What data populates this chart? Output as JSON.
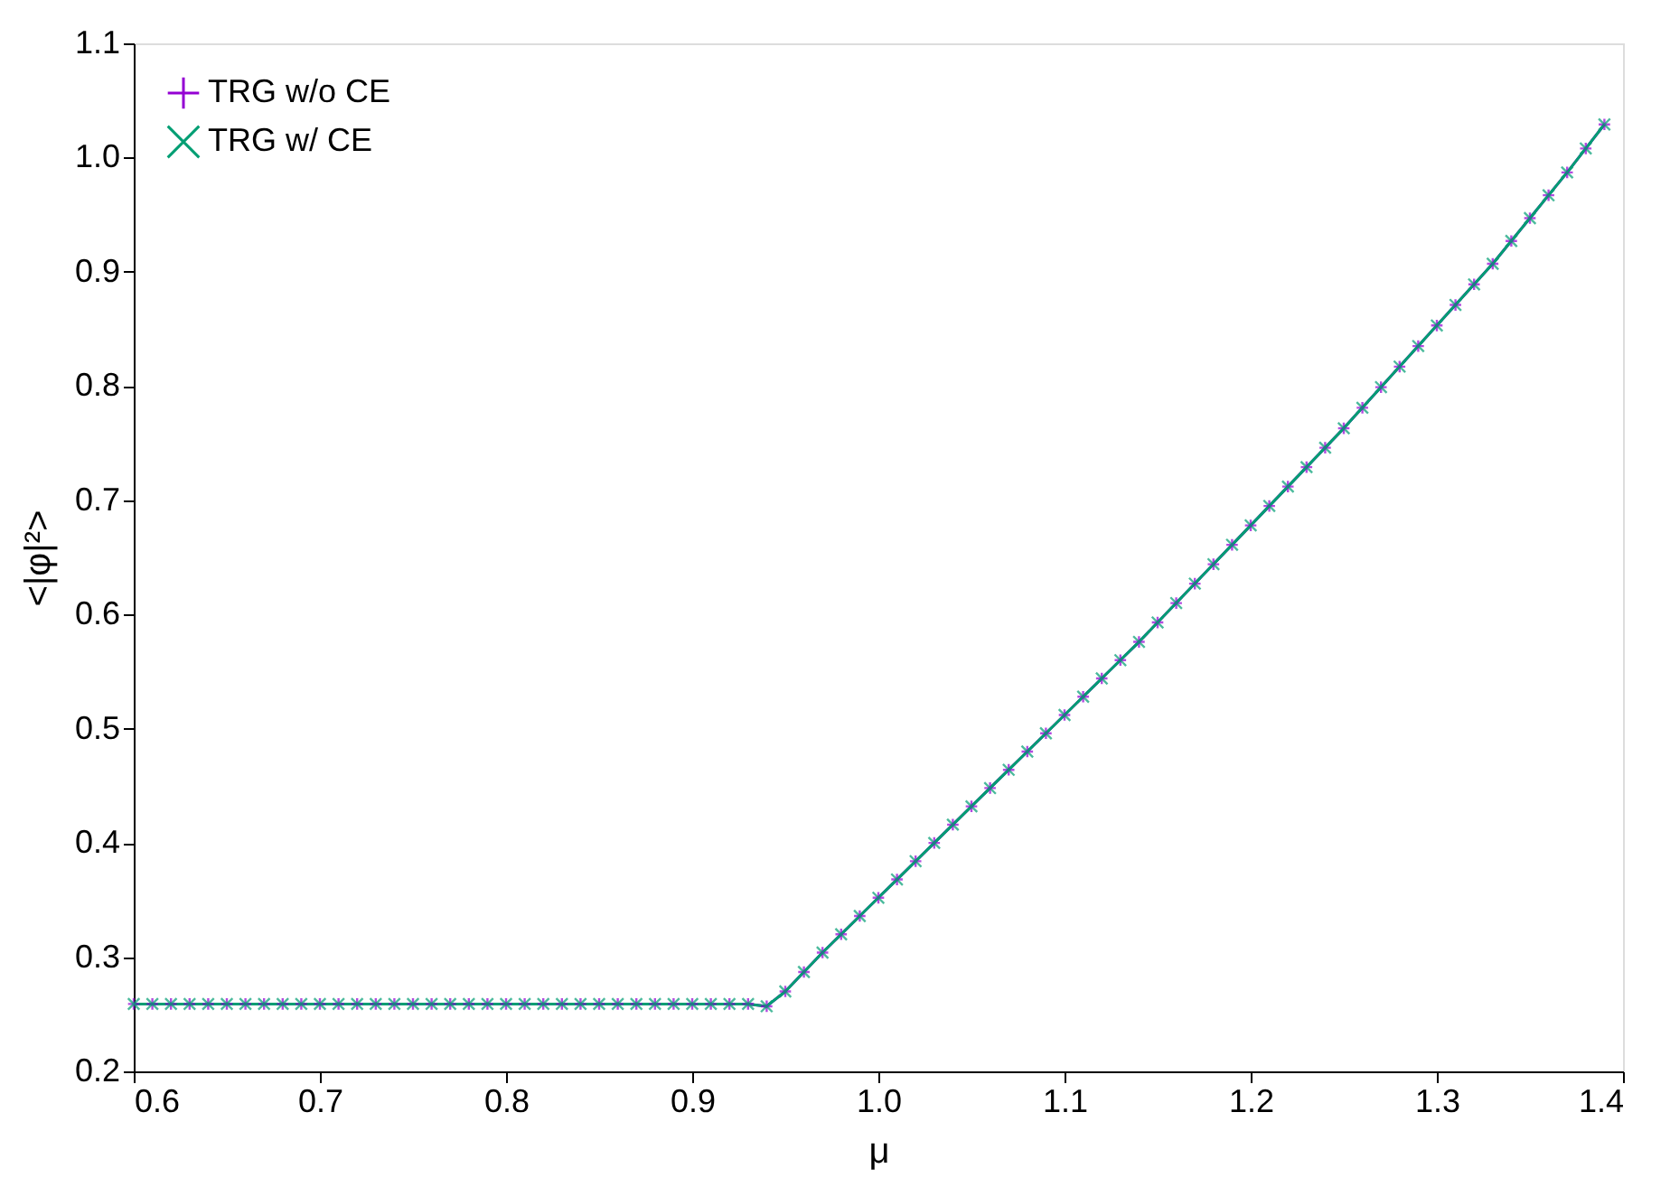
{
  "chart_data": {
    "type": "line",
    "xlabel": "μ",
    "ylabel": "<|φ|²>",
    "x": [
      0.6,
      0.61,
      0.62,
      0.63,
      0.64,
      0.65,
      0.66,
      0.67,
      0.68,
      0.69,
      0.7,
      0.71,
      0.72,
      0.73,
      0.74,
      0.75,
      0.76,
      0.77,
      0.78,
      0.79,
      0.8,
      0.81,
      0.82,
      0.83,
      0.84,
      0.85,
      0.86,
      0.87,
      0.88,
      0.89,
      0.9,
      0.91,
      0.92,
      0.93,
      0.94,
      0.95,
      0.96,
      0.97,
      0.98,
      0.99,
      1.0,
      1.01,
      1.02,
      1.03,
      1.04,
      1.05,
      1.06,
      1.07,
      1.08,
      1.09,
      1.1,
      1.11,
      1.12,
      1.13,
      1.14,
      1.15,
      1.16,
      1.17,
      1.18,
      1.19,
      1.2,
      1.21,
      1.22,
      1.23,
      1.24,
      1.25,
      1.26,
      1.27,
      1.28,
      1.29,
      1.3,
      1.31,
      1.32,
      1.33,
      1.34,
      1.35,
      1.36,
      1.37,
      1.38,
      1.39
    ],
    "series": [
      {
        "name": "TRG w/o CE",
        "color": "#9400d3",
        "marker": "cross",
        "values": [
          0.259,
          0.259,
          0.259,
          0.259,
          0.259,
          0.259,
          0.259,
          0.259,
          0.259,
          0.259,
          0.259,
          0.259,
          0.259,
          0.259,
          0.259,
          0.259,
          0.259,
          0.259,
          0.259,
          0.259,
          0.259,
          0.259,
          0.259,
          0.259,
          0.259,
          0.259,
          0.259,
          0.259,
          0.259,
          0.259,
          0.259,
          0.259,
          0.259,
          0.259,
          0.257,
          0.27,
          0.287,
          0.304,
          0.32,
          0.336,
          0.352,
          0.368,
          0.384,
          0.4,
          0.416,
          0.432,
          0.448,
          0.464,
          0.48,
          0.496,
          0.512,
          0.528,
          0.544,
          0.56,
          0.576,
          0.593,
          0.61,
          0.627,
          0.644,
          0.661,
          0.678,
          0.695,
          0.712,
          0.729,
          0.746,
          0.763,
          0.781,
          0.799,
          0.817,
          0.835,
          0.853,
          0.871,
          0.889,
          0.907,
          0.927,
          0.947,
          0.967,
          0.987,
          1.008,
          1.029
        ]
      },
      {
        "name": "TRG w/ CE",
        "color": "#009e73",
        "marker": "x",
        "values": [
          0.259,
          0.259,
          0.259,
          0.259,
          0.259,
          0.259,
          0.259,
          0.259,
          0.259,
          0.259,
          0.259,
          0.259,
          0.259,
          0.259,
          0.259,
          0.259,
          0.259,
          0.259,
          0.259,
          0.259,
          0.259,
          0.259,
          0.259,
          0.259,
          0.259,
          0.259,
          0.259,
          0.259,
          0.259,
          0.259,
          0.259,
          0.259,
          0.259,
          0.259,
          0.257,
          0.27,
          0.287,
          0.304,
          0.32,
          0.336,
          0.352,
          0.368,
          0.384,
          0.4,
          0.416,
          0.432,
          0.448,
          0.464,
          0.48,
          0.496,
          0.512,
          0.528,
          0.544,
          0.56,
          0.576,
          0.593,
          0.61,
          0.627,
          0.644,
          0.661,
          0.678,
          0.695,
          0.712,
          0.729,
          0.746,
          0.763,
          0.781,
          0.799,
          0.817,
          0.835,
          0.853,
          0.871,
          0.889,
          0.907,
          0.927,
          0.947,
          0.967,
          0.987,
          1.008,
          1.029
        ]
      }
    ],
    "xlim": [
      0.6,
      1.4
    ],
    "xticks": [
      0.6,
      0.7,
      0.8,
      0.9,
      {
        "value": 1,
        "label": "1.0"
      },
      1.1,
      1.2,
      1.3,
      1.4
    ],
    "ylim": [
      0.2,
      1.1
    ],
    "yticks": [
      0.2,
      0.3,
      0.4,
      0.5,
      0.6,
      0.7,
      0.8,
      0.9,
      {
        "value": 1,
        "label": "1.0"
      },
      1.1
    ],
    "grid": false,
    "legend": "top left",
    "line_style": "solid"
  }
}
